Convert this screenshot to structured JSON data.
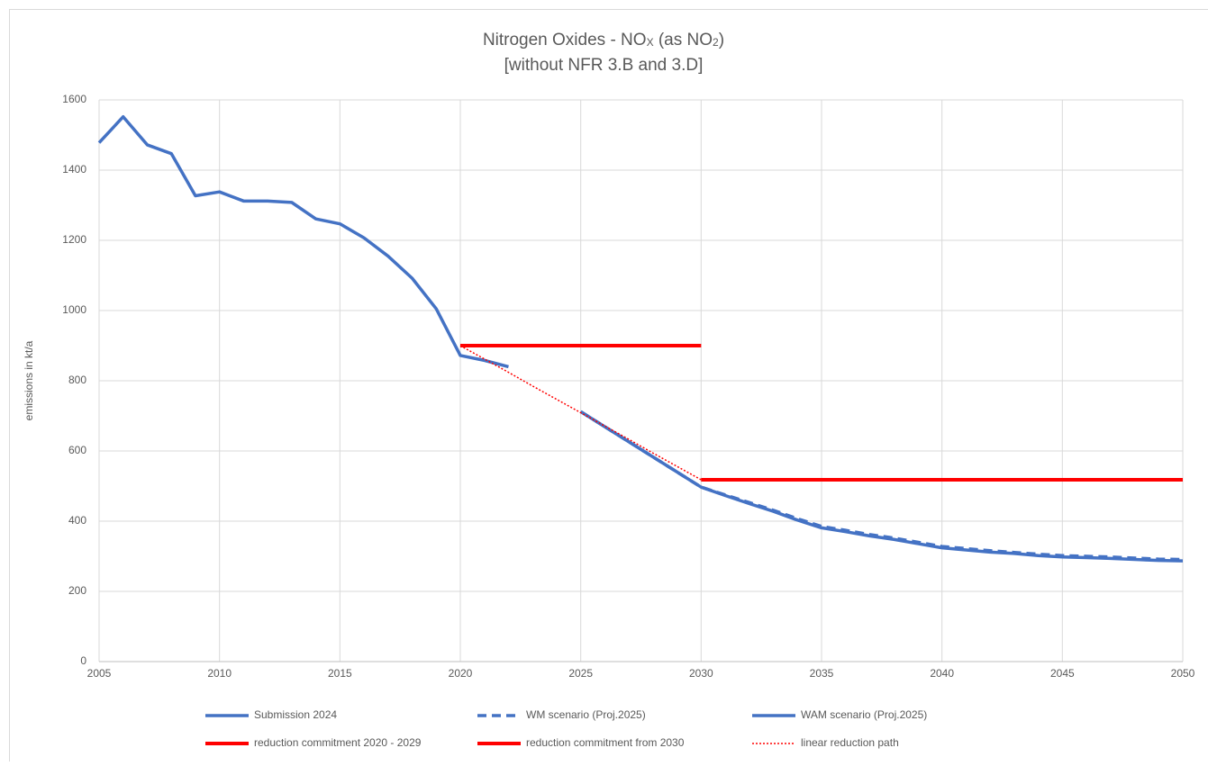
{
  "chart_data": {
    "type": "line",
    "title": [
      "Nitrogen Oxides - NO",
      "X",
      " (as NO",
      "2",
      ")"
    ],
    "subtitle": "[without NFR 3.B and 3.D]",
    "y_label": "emissions in kt/a",
    "x": [
      2005,
      2006,
      2007,
      2008,
      2009,
      2010,
      2011,
      2012,
      2013,
      2014,
      2015,
      2016,
      2017,
      2018,
      2019,
      2020,
      2021,
      2022,
      2023,
      2024,
      2025,
      2026,
      2027,
      2028,
      2029,
      2030,
      2031,
      2032,
      2033,
      2034,
      2035,
      2036,
      2037,
      2038,
      2039,
      2040,
      2041,
      2042,
      2043,
      2044,
      2045,
      2046,
      2047,
      2048,
      2049,
      2050
    ],
    "xlim": [
      2005,
      2050
    ],
    "xticks": [
      2005,
      2010,
      2015,
      2020,
      2025,
      2030,
      2035,
      2040,
      2045,
      2050
    ],
    "ylim": [
      0,
      1600
    ],
    "yticks": [
      0,
      200,
      400,
      600,
      800,
      1000,
      1200,
      1400,
      1600
    ],
    "grid": true,
    "series": [
      {
        "name": "Submission 2024",
        "color": "#4472c4",
        "dash": "solid",
        "width": 3.5,
        "values": [
          1478,
          1552,
          1472,
          1447,
          1327,
          1338,
          1312,
          1312,
          1308,
          1261,
          1247,
          1207,
          1155,
          1092,
          1005,
          872,
          858,
          840,
          null,
          null,
          null,
          null,
          null,
          null,
          null,
          null,
          null,
          null,
          null,
          null,
          null,
          null,
          null,
          null,
          null,
          null,
          null,
          null,
          null,
          null,
          null,
          null,
          null,
          null,
          null,
          null
        ]
      },
      {
        "name": "WM scenario (Proj.2025)",
        "color": "#4472c4",
        "dash": "dash",
        "width": 3.5,
        "values": [
          null,
          null,
          null,
          null,
          null,
          null,
          null,
          null,
          null,
          null,
          null,
          null,
          null,
          null,
          null,
          null,
          null,
          null,
          null,
          null,
          712,
          669,
          626,
          583,
          540,
          497,
          475,
          453,
          431,
          407,
          385,
          374,
          362,
          352,
          340,
          328,
          322,
          316,
          311,
          306,
          302,
          300,
          298,
          295,
          292,
          291
        ]
      },
      {
        "name": "WAM scenario (Proj.2025)",
        "color": "#4472c4",
        "dash": "solid",
        "width": 3.5,
        "values": [
          null,
          null,
          null,
          null,
          null,
          null,
          null,
          null,
          null,
          null,
          null,
          null,
          null,
          null,
          null,
          null,
          null,
          null,
          null,
          null,
          712,
          669,
          626,
          583,
          540,
          497,
          473,
          450,
          428,
          403,
          381,
          370,
          358,
          348,
          336,
          324,
          318,
          312,
          308,
          302,
          298,
          296,
          294,
          291,
          288,
          287
        ]
      },
      {
        "name": "reduction commitment 2020 - 2029",
        "color": "#ff0000",
        "dash": "solid",
        "width": 4,
        "values": [
          null,
          null,
          null,
          null,
          null,
          null,
          null,
          null,
          null,
          null,
          null,
          null,
          null,
          null,
          null,
          900,
          900,
          900,
          900,
          900,
          900,
          900,
          900,
          900,
          900,
          900,
          null,
          null,
          null,
          null,
          null,
          null,
          null,
          null,
          null,
          null,
          null,
          null,
          null,
          null,
          null,
          null,
          null,
          null,
          null,
          null
        ]
      },
      {
        "name": "reduction commitment from 2030",
        "color": "#ff0000",
        "dash": "solid",
        "width": 4,
        "values": [
          null,
          null,
          null,
          null,
          null,
          null,
          null,
          null,
          null,
          null,
          null,
          null,
          null,
          null,
          null,
          null,
          null,
          null,
          null,
          null,
          null,
          null,
          null,
          null,
          null,
          518,
          518,
          518,
          518,
          518,
          518,
          518,
          518,
          518,
          518,
          518,
          518,
          518,
          518,
          518,
          518,
          518,
          518,
          518,
          518,
          518
        ]
      },
      {
        "name": "linear reduction path",
        "color": "#ff0000",
        "dash": "dot",
        "width": 1.5,
        "values": [
          null,
          null,
          null,
          null,
          null,
          null,
          null,
          null,
          null,
          null,
          null,
          null,
          null,
          null,
          null,
          900,
          862,
          824,
          785,
          747,
          709,
          671,
          633,
          594,
          556,
          518,
          null,
          null,
          null,
          null,
          null,
          null,
          null,
          null,
          null,
          null,
          null,
          null,
          null,
          null,
          null,
          null,
          null,
          null,
          null,
          null
        ]
      }
    ]
  }
}
